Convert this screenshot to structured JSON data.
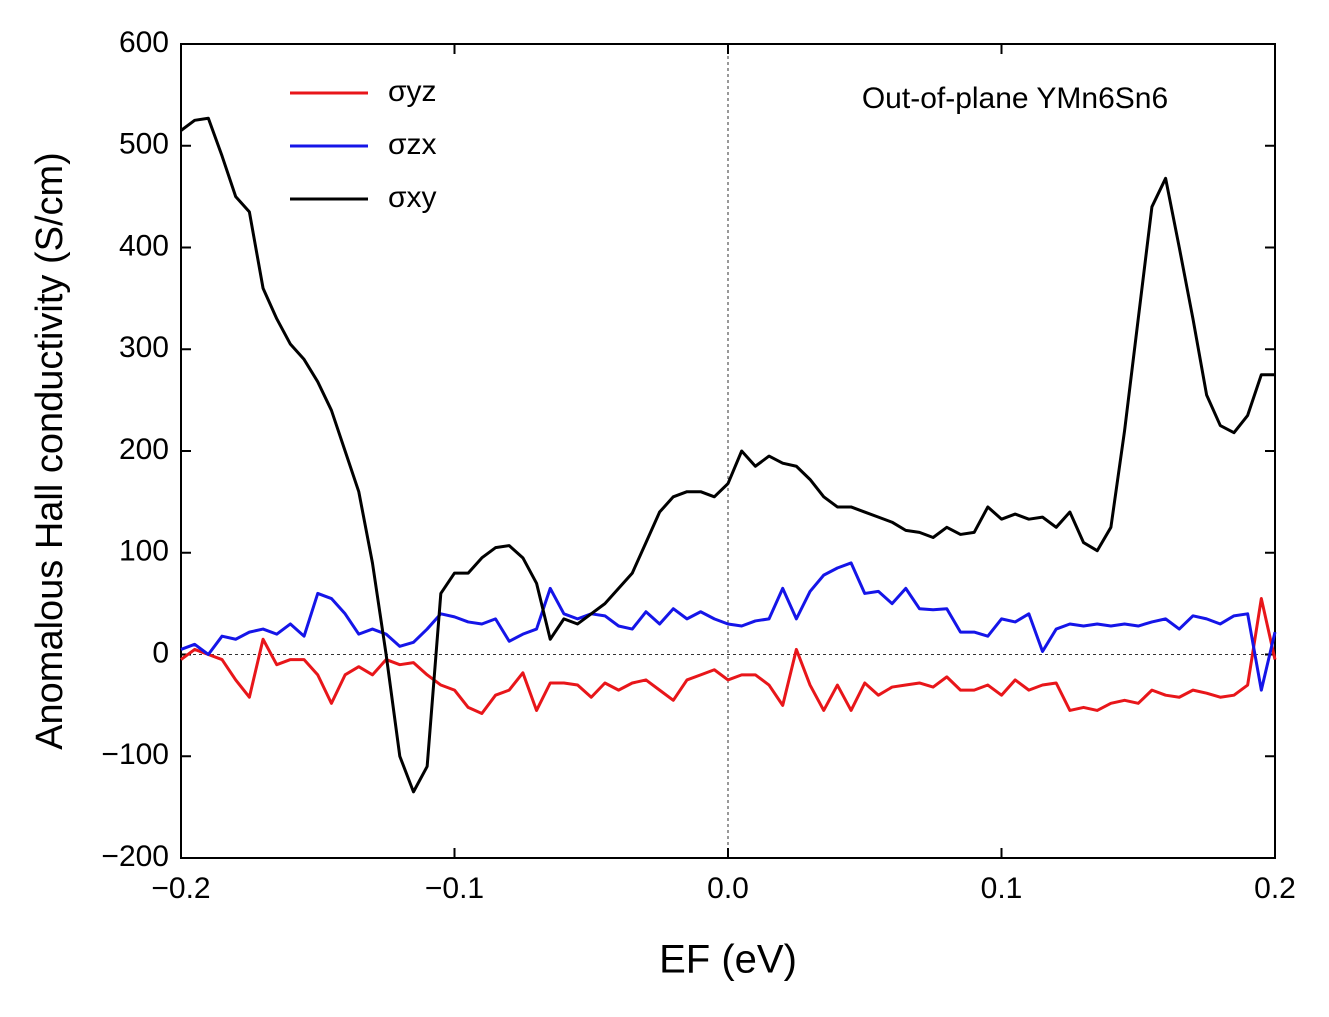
{
  "chart_data": {
    "type": "line",
    "xlabel": "EF (eV)",
    "ylabel": "Anomalous Hall conductivity (S/cm)",
    "annotation": "Out-of-plane YMn6Sn6",
    "xlim": [
      -0.2,
      0.2
    ],
    "ylim": [
      -200,
      600
    ],
    "xticks": [
      {
        "value": -0.2,
        "label": "−0.2"
      },
      {
        "value": -0.1,
        "label": "−0.1"
      },
      {
        "value": 0,
        "label": "0.0"
      },
      {
        "value": 0.1,
        "label": "0.1"
      },
      {
        "value": 0.2,
        "label": "0.2"
      }
    ],
    "yticks": [
      {
        "value": -200,
        "label": "−200"
      },
      {
        "value": -100,
        "label": "−100"
      },
      0,
      100,
      200,
      300,
      400,
      500,
      600
    ],
    "zero_lines": true,
    "legend": "upper left",
    "x": [
      -0.2,
      -0.195,
      -0.19,
      -0.185,
      -0.18,
      -0.175,
      -0.17,
      -0.165,
      -0.16,
      -0.155,
      -0.15,
      -0.145,
      -0.14,
      -0.135,
      -0.13,
      -0.125,
      -0.12,
      -0.115,
      -0.11,
      -0.105,
      -0.1,
      -0.095,
      -0.09,
      -0.085,
      -0.08,
      -0.075,
      -0.07,
      -0.065,
      -0.06,
      -0.055,
      -0.05,
      -0.045,
      -0.04,
      -0.035,
      -0.03,
      -0.025,
      -0.02,
      -0.015,
      -0.01,
      -0.005,
      0,
      0.005,
      0.01,
      0.015,
      0.02,
      0.025,
      0.03,
      0.035,
      0.04,
      0.045,
      0.05,
      0.055,
      0.06,
      0.065,
      0.07,
      0.075,
      0.08,
      0.085,
      0.09,
      0.095,
      0.1,
      0.105,
      0.11,
      0.115,
      0.12,
      0.125,
      0.13,
      0.135,
      0.14,
      0.145,
      0.15,
      0.155,
      0.16,
      0.165,
      0.17,
      0.175,
      0.18,
      0.185,
      0.19,
      0.195,
      0.2
    ],
    "series": [
      {
        "name": "σyz",
        "color": "#e8161a",
        "values": [
          -5,
          5,
          0,
          -5,
          -25,
          -42,
          15,
          -10,
          -5,
          -5,
          -20,
          -48,
          -20,
          -12,
          -20,
          -5,
          -10,
          -8,
          -20,
          -30,
          -35,
          -52,
          -58,
          -40,
          -35,
          -18,
          -55,
          -28,
          -28,
          -30,
          -42,
          -28,
          -35,
          -28,
          -25,
          -35,
          -45,
          -25,
          -20,
          -15,
          -25,
          -20,
          -20,
          -30,
          -50,
          5,
          -30,
          -55,
          -30,
          -55,
          -28,
          -40,
          -32,
          -30,
          -28,
          -32,
          -22,
          -35,
          -35,
          -30,
          -40,
          -25,
          -35,
          -30,
          -28,
          -55,
          -52,
          -55,
          -48,
          -45,
          -48,
          -35,
          -40,
          -42,
          -35,
          -38,
          -42,
          -40,
          -30,
          55,
          -5
        ]
      },
      {
        "name": "σzx",
        "color": "#1515e8",
        "values": [
          5,
          10,
          0,
          18,
          15,
          22,
          25,
          20,
          30,
          18,
          60,
          55,
          40,
          20,
          25,
          20,
          8,
          12,
          25,
          40,
          37,
          32,
          30,
          35,
          13,
          20,
          25,
          65,
          40,
          35,
          40,
          38,
          28,
          25,
          42,
          30,
          45,
          35,
          42,
          35,
          30,
          28,
          33,
          35,
          65,
          35,
          62,
          78,
          85,
          90,
          60,
          62,
          50,
          65,
          45,
          44,
          45,
          22,
          22,
          18,
          35,
          32,
          40,
          3,
          25,
          30,
          28,
          30,
          28,
          30,
          28,
          32,
          35,
          25,
          38,
          35,
          30,
          38,
          40,
          -35,
          22
        ]
      },
      {
        "name": "σxy",
        "color": "#000000",
        "values": [
          515,
          525,
          527,
          490,
          450,
          435,
          360,
          330,
          305,
          290,
          268,
          240,
          200,
          160,
          90,
          0,
          -100,
          -135,
          -110,
          60,
          80,
          80,
          95,
          105,
          107,
          95,
          70,
          15,
          35,
          30,
          40,
          50,
          65,
          80,
          110,
          140,
          155,
          160,
          160,
          155,
          168,
          200,
          185,
          195,
          188,
          185,
          172,
          155,
          145,
          145,
          140,
          135,
          130,
          122,
          120,
          115,
          125,
          118,
          120,
          145,
          133,
          138,
          133,
          135,
          125,
          140,
          110,
          102,
          125,
          220,
          330,
          440,
          468,
          400,
          330,
          255,
          225,
          218,
          235,
          275,
          275
        ]
      }
    ]
  }
}
